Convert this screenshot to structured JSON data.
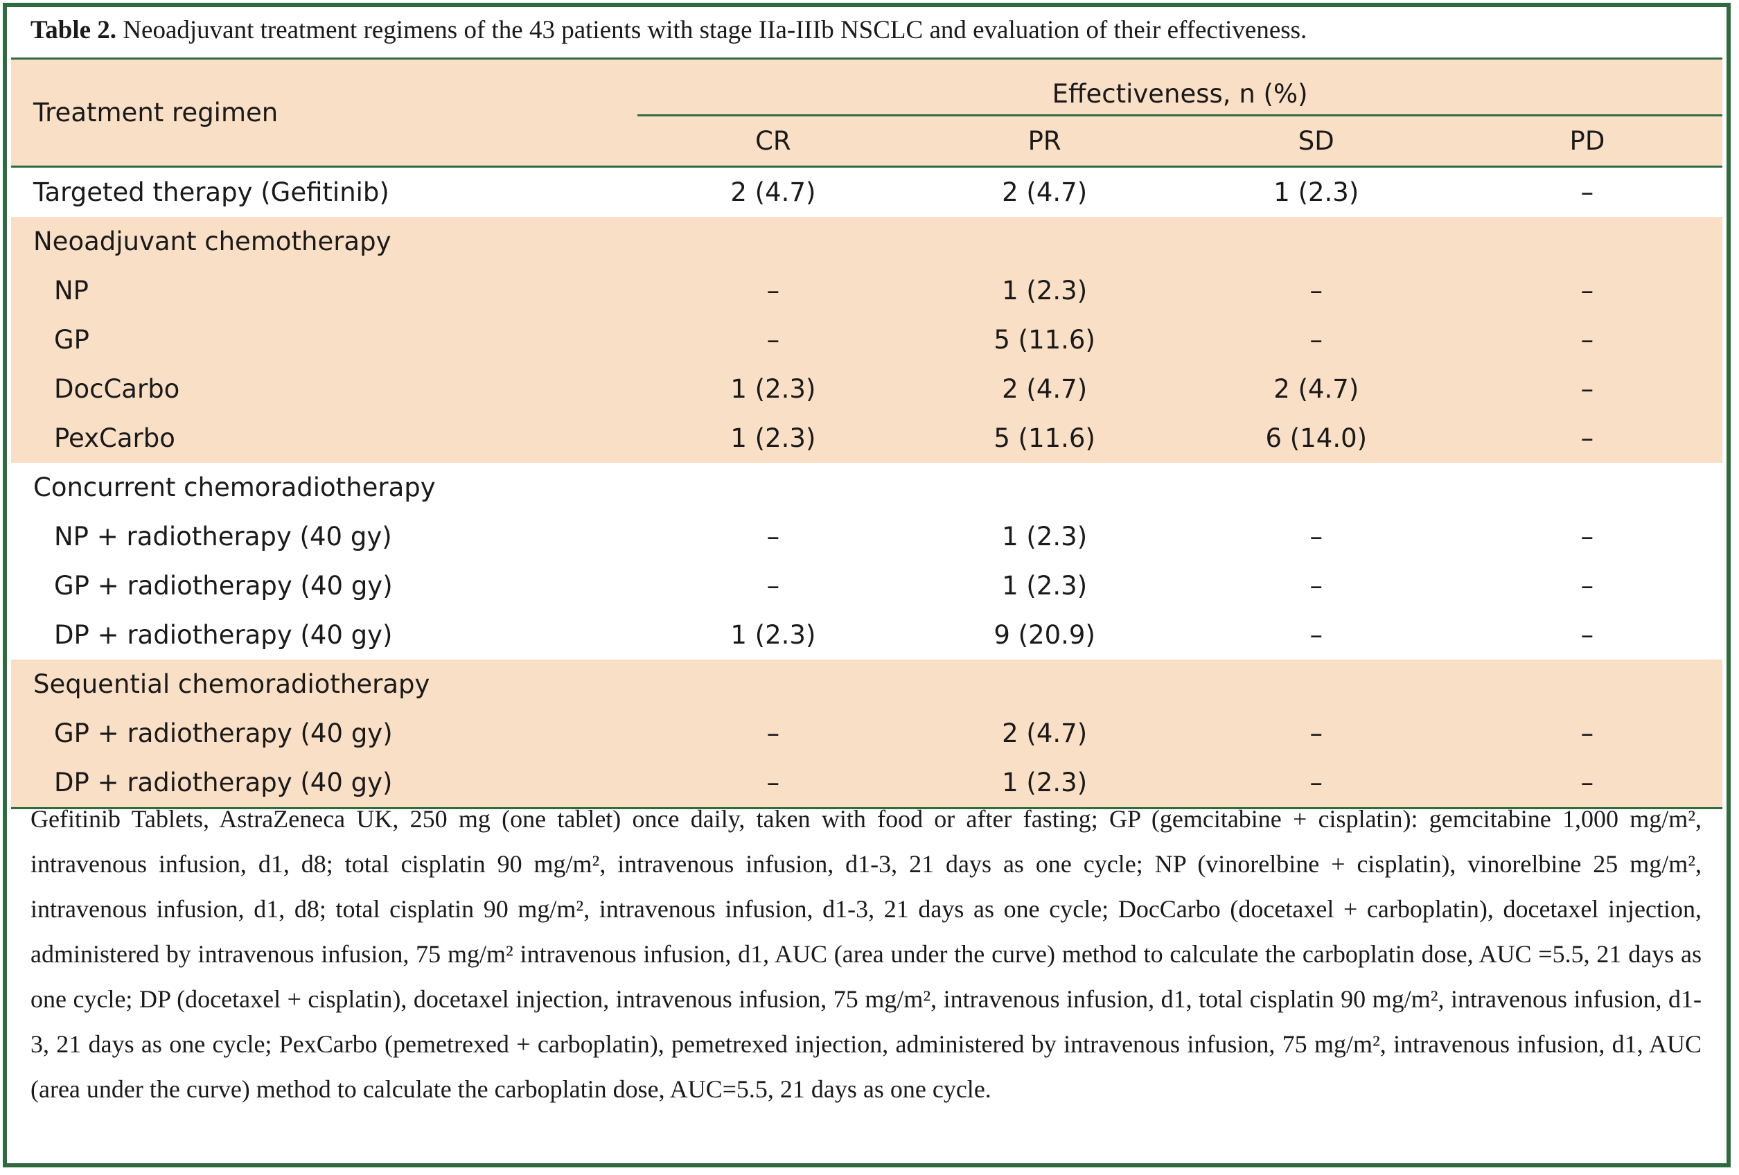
{
  "caption": {
    "label": "Table 2.",
    "text": "Neoadjuvant treatment regimens of the 43 patients with stage IIa-IIIb NSCLC and evaluation of their effectiveness."
  },
  "header": {
    "first_col": "Treatment regimen",
    "group": "Effectiveness, n (%)",
    "cols": [
      "CR",
      "PR",
      "SD",
      "PD"
    ]
  },
  "rows": [
    {
      "label": "Targeted therapy (Gefitinib)",
      "values": [
        "2 (4.7)",
        "2 (4.7)",
        "1 (2.3)",
        "–"
      ]
    },
    {
      "label": "Neoadjuvant chemotherapy",
      "values": [
        "",
        "",
        "",
        ""
      ]
    },
    {
      "label": "NP",
      "values": [
        "–",
        "1 (2.3)",
        "–",
        "–"
      ]
    },
    {
      "label": "GP",
      "values": [
        "–",
        "5 (11.6)",
        "–",
        "–"
      ]
    },
    {
      "label": "DocCarbo",
      "values": [
        "1 (2.3)",
        "2 (4.7)",
        "2 (4.7)",
        "–"
      ]
    },
    {
      "label": "PexCarbo",
      "values": [
        "1 (2.3)",
        "5 (11.6)",
        "6 (14.0)",
        "–"
      ]
    },
    {
      "label": "Concurrent chemoradiotherapy",
      "values": [
        "",
        "",
        "",
        ""
      ]
    },
    {
      "label": "NP + radiotherapy (40 gy)",
      "values": [
        "–",
        "1 (2.3)",
        "–",
        "–"
      ]
    },
    {
      "label": "GP + radiotherapy (40 gy)",
      "values": [
        "–",
        "1 (2.3)",
        "–",
        "–"
      ]
    },
    {
      "label": "DP + radiotherapy (40 gy)",
      "values": [
        "1 (2.3)",
        "9 (20.9)",
        "–",
        "–"
      ]
    },
    {
      "label": "Sequential chemoradiotherapy",
      "values": [
        "",
        "",
        "",
        ""
      ]
    },
    {
      "label": "GP + radiotherapy (40 gy)",
      "values": [
        "–",
        "2 (4.7)",
        "–",
        "–"
      ]
    },
    {
      "label": "DP + radiotherapy (40 gy)",
      "values": [
        "–",
        "1 (2.3)",
        "–",
        "–"
      ]
    }
  ],
  "footnote": "Gefitinib Tablets, AstraZeneca UK, 250 mg (one tablet) once daily, taken with food or after fasting; GP (gemcitabine + cisplatin): gemcitabine 1,000 mg/m², intravenous infusion, d1, d8; total cisplatin 90 mg/m², intravenous infusion, d1-3, 21 days as one cycle; NP (vinorelbine + cisplatin), vinorelbine 25 mg/m², intravenous infusion, d1, d8; total cisplatin 90 mg/m², intravenous infusion, d1-3, 21 days as one cycle; DocCarbo (docetaxel + carboplatin), docetaxel injection, administered by intravenous infusion, 75 mg/m² intravenous infusion, d1, AUC (area under the curve) method to calculate the carboplatin dose, AUC =5.5, 21 days as one cycle; DP (docetaxel + cisplatin), docetaxel injection, intravenous infusion, 75 mg/m², intravenous infusion, d1, total cisplatin 90 mg/m², intravenous infusion, d1-3, 21 days as one cycle; PexCarbo (pemetrexed + carboplatin), pemetrexed injection, administered by intravenous infusion, 75 mg/m², intravenous infusion, d1, AUC (area under the curve) method to calculate the carboplatin dose, AUC=5.5, 21 days as one cycle.",
  "colors": {
    "border": "#2e6b3e",
    "band": "#f9dfc5"
  }
}
